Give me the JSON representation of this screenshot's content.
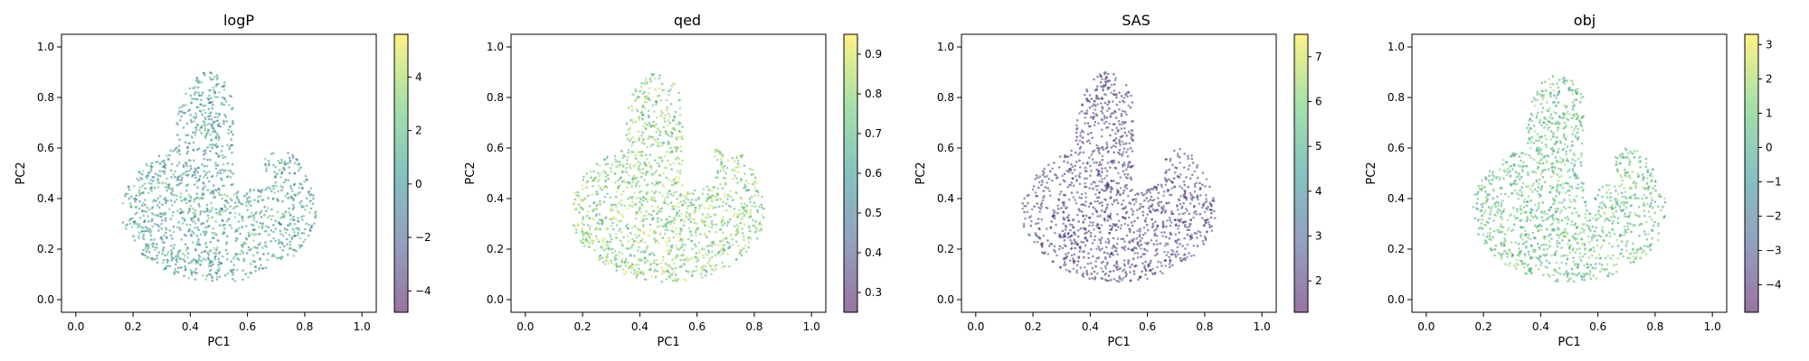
{
  "chart_data": [
    {
      "type": "scatter",
      "title": "logP",
      "xlabel": "PC1",
      "ylabel": "PC2",
      "xlim": [
        -0.05,
        1.05
      ],
      "ylim": [
        -0.05,
        1.05
      ],
      "x_ticks": [
        "0.0",
        "0.2",
        "0.4",
        "0.6",
        "0.8",
        "1.0"
      ],
      "y_ticks": [
        "0.0",
        "0.2",
        "0.4",
        "0.6",
        "0.8",
        "1.0"
      ],
      "colorbar": {
        "min": -4.8,
        "max": 5.6,
        "ticks": [
          -4,
          -2,
          0,
          2,
          4
        ],
        "tick_labels": [
          "−4",
          "−2",
          "0",
          "2",
          "4"
        ]
      },
      "colormap": [
        "#440154",
        "#3b528b",
        "#21918c",
        "#5ec962",
        "#fde725"
      ],
      "alpha": 0.55,
      "color_range_sampled": [
        0.3,
        0.75
      ],
      "legend": "none",
      "grid": false
    },
    {
      "type": "scatter",
      "title": "qed",
      "xlabel": "PC1",
      "ylabel": "PC2",
      "xlim": [
        -0.05,
        1.05
      ],
      "ylim": [
        -0.05,
        1.05
      ],
      "x_ticks": [
        "0.0",
        "0.2",
        "0.4",
        "0.6",
        "0.8",
        "1.0"
      ],
      "y_ticks": [
        "0.0",
        "0.2",
        "0.4",
        "0.6",
        "0.8",
        "1.0"
      ],
      "colorbar": {
        "min": 0.25,
        "max": 0.95,
        "ticks": [
          0.3,
          0.4,
          0.5,
          0.6,
          0.7,
          0.8,
          0.9
        ],
        "tick_labels": [
          "0.3",
          "0.4",
          "0.5",
          "0.6",
          "0.7",
          "0.8",
          "0.9"
        ]
      },
      "colormap": [
        "#440154",
        "#3b528b",
        "#21918c",
        "#5ec962",
        "#fde725"
      ],
      "alpha": 0.55,
      "color_range_sampled": [
        0.55,
        0.95
      ],
      "legend": "none",
      "grid": false
    },
    {
      "type": "scatter",
      "title": "SAS",
      "xlabel": "PC1",
      "ylabel": "PC2",
      "xlim": [
        -0.05,
        1.05
      ],
      "ylim": [
        -0.05,
        1.05
      ],
      "x_ticks": [
        "0.0",
        "0.2",
        "0.4",
        "0.6",
        "0.8",
        "1.0"
      ],
      "y_ticks": [
        "0.0",
        "0.2",
        "0.4",
        "0.6",
        "0.8",
        "1.0"
      ],
      "colorbar": {
        "min": 1.3,
        "max": 7.5,
        "ticks": [
          2,
          3,
          4,
          5,
          6,
          7
        ],
        "tick_labels": [
          "2",
          "3",
          "4",
          "5",
          "6",
          "7"
        ]
      },
      "colormap": [
        "#440154",
        "#3b528b",
        "#21918c",
        "#5ec962",
        "#fde725"
      ],
      "alpha": 0.55,
      "color_range_sampled": [
        0.02,
        0.3
      ],
      "legend": "none",
      "grid": false
    },
    {
      "type": "scatter",
      "title": "obj",
      "xlabel": "PC1",
      "ylabel": "PC2",
      "xlim": [
        -0.05,
        1.05
      ],
      "ylim": [
        -0.05,
        1.05
      ],
      "x_ticks": [
        "0.0",
        "0.2",
        "0.4",
        "0.6",
        "0.8",
        "1.0"
      ],
      "y_ticks": [
        "0.0",
        "0.2",
        "0.4",
        "0.6",
        "0.8",
        "1.0"
      ],
      "colorbar": {
        "min": -4.8,
        "max": 3.3,
        "ticks": [
          -4,
          -3,
          -2,
          -1,
          0,
          1,
          2,
          3
        ],
        "tick_labels": [
          "−4",
          "−3",
          "−2",
          "−1",
          "0",
          "1",
          "2",
          "3"
        ]
      },
      "colormap": [
        "#440154",
        "#3b528b",
        "#21918c",
        "#5ec962",
        "#fde725"
      ],
      "alpha": 0.55,
      "color_range_sampled": [
        0.5,
        0.85
      ],
      "legend": "none",
      "grid": false
    }
  ]
}
